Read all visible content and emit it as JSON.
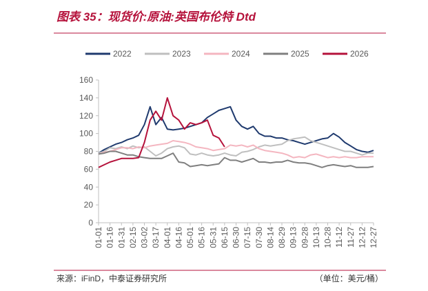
{
  "chart_data": {
    "type": "line",
    "title": "图表 35：现货价:原油:英国布伦特 Dtd",
    "source": "来源：iFinD，中泰证券研究所",
    "unit": "（单位：美元/桶）",
    "categories": [
      "01-01",
      null,
      "01-16",
      null,
      "01-31",
      null,
      "02-15",
      null,
      "03-02",
      null,
      "03-17",
      null,
      "04-01",
      null,
      "04-16",
      null,
      "05-01",
      null,
      "05-16",
      null,
      "05-31",
      null,
      "06-15",
      null,
      "06-30",
      null,
      "07-15",
      null,
      "07-30",
      null,
      "08-14",
      null,
      "08-29",
      null,
      "09-13",
      null,
      "09-28",
      null,
      "10-13",
      null,
      "10-28",
      null,
      "11-12",
      null,
      "11-27",
      null,
      "12-12",
      null,
      "12-27"
    ],
    "series": [
      {
        "name": "2022",
        "color": "#1f3a6e",
        "values": [
          78,
          82,
          85,
          88,
          90,
          93,
          95,
          98,
          110,
          130,
          110,
          118,
          105,
          104,
          105,
          106,
          108,
          110,
          112,
          118,
          122,
          126,
          128,
          130,
          115,
          108,
          105,
          108,
          100,
          97,
          97,
          95,
          95,
          93,
          92,
          90,
          88,
          90,
          92,
          94,
          95,
          100,
          96,
          90,
          86,
          82,
          80,
          79,
          81
        ]
      },
      {
        "name": "2023",
        "color": "#bfbfbf",
        "values": [
          78,
          80,
          84,
          83,
          85,
          83,
          86,
          84,
          85,
          80,
          75,
          78,
          83,
          85,
          86,
          84,
          77,
          76,
          78,
          76,
          75,
          76,
          78,
          76,
          75,
          79,
          80,
          82,
          85,
          87,
          86,
          87,
          88,
          92,
          94,
          95,
          96,
          92,
          90,
          88,
          86,
          84,
          82,
          80,
          80,
          78,
          76,
          78,
          78
        ]
      },
      {
        "name": "2024",
        "color": "#f4b6c0",
        "values": [
          77,
          79,
          80,
          82,
          84,
          84,
          83,
          85,
          84,
          86,
          87,
          88,
          89,
          92,
          91,
          90,
          88,
          85,
          84,
          83,
          81,
          82,
          83,
          87,
          86,
          87,
          85,
          87,
          83,
          81,
          80,
          79,
          78,
          76,
          73,
          74,
          73,
          76,
          77,
          75,
          73,
          74,
          73,
          74,
          73,
          73,
          74,
          74,
          74
        ]
      },
      {
        "name": "2025",
        "color": "#7f7f7f",
        "values": [
          77,
          78,
          80,
          80,
          78,
          76,
          76,
          74,
          73,
          72,
          72,
          72,
          75,
          78,
          68,
          67,
          63,
          64,
          65,
          64,
          65,
          66,
          73,
          70,
          70,
          68,
          70,
          72,
          68,
          68,
          67,
          68,
          68,
          70,
          68,
          67,
          67,
          66,
          64,
          62,
          64,
          65,
          64,
          63,
          64,
          62,
          62,
          62,
          63
        ]
      },
      {
        "name": "2026",
        "color": "#b5123b",
        "values": [
          62,
          65,
          68,
          70,
          72,
          72,
          72,
          73,
          90,
          115,
          125,
          115,
          140,
          120,
          115,
          105,
          112,
          110,
          112,
          115,
          98,
          95,
          85,
          null,
          null,
          null,
          null,
          null,
          null,
          null,
          null,
          null,
          null,
          null,
          null,
          null,
          null,
          null,
          null,
          null,
          null,
          null,
          null,
          null,
          null,
          null,
          null,
          null,
          null
        ]
      }
    ],
    "ylim": [
      0,
      160
    ],
    "yticks": [
      0,
      20,
      40,
      60,
      80,
      100,
      120,
      140,
      160
    ],
    "grid": false,
    "legend": "top"
  }
}
